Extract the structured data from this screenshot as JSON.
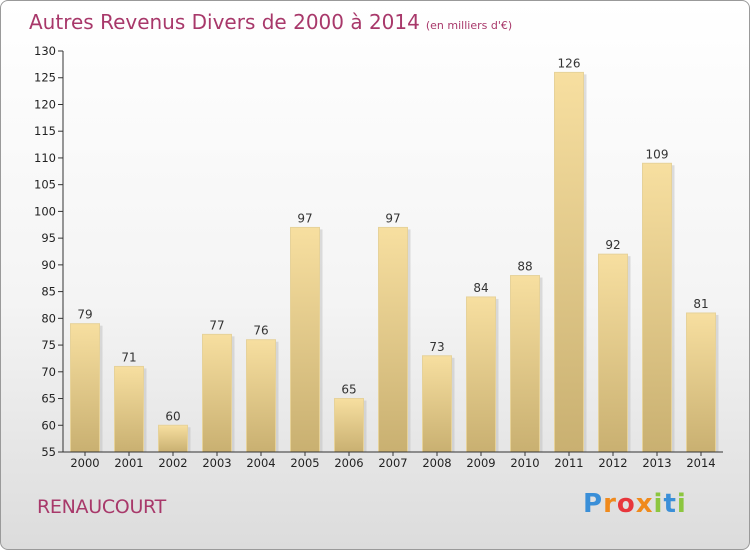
{
  "title": {
    "main": "Autres Revenus Divers de 2000 à 2014",
    "unit": "(en milliers d'€)"
  },
  "city": "RENAUCOURT",
  "brand": {
    "logo_text": "Proxiti"
  },
  "colors": {
    "title": "#a8386a",
    "bar_top": "#f7dfa0",
    "bar_bottom": "#c9b071",
    "axis": "#333333"
  },
  "chart_data": {
    "type": "bar",
    "title": "Autres Revenus Divers de 2000 à 2014",
    "categories": [
      "2000",
      "2001",
      "2002",
      "2003",
      "2004",
      "2005",
      "2006",
      "2007",
      "2008",
      "2009",
      "2010",
      "2011",
      "2012",
      "2013",
      "2014"
    ],
    "values": [
      79,
      71,
      60,
      77,
      76,
      97,
      65,
      97,
      73,
      84,
      88,
      126,
      92,
      109,
      81
    ],
    "ylim": [
      55,
      130
    ],
    "yticks": [
      55,
      60,
      65,
      70,
      75,
      80,
      85,
      90,
      95,
      100,
      105,
      110,
      115,
      120,
      125,
      130
    ],
    "grid": false,
    "data_labels": true
  }
}
